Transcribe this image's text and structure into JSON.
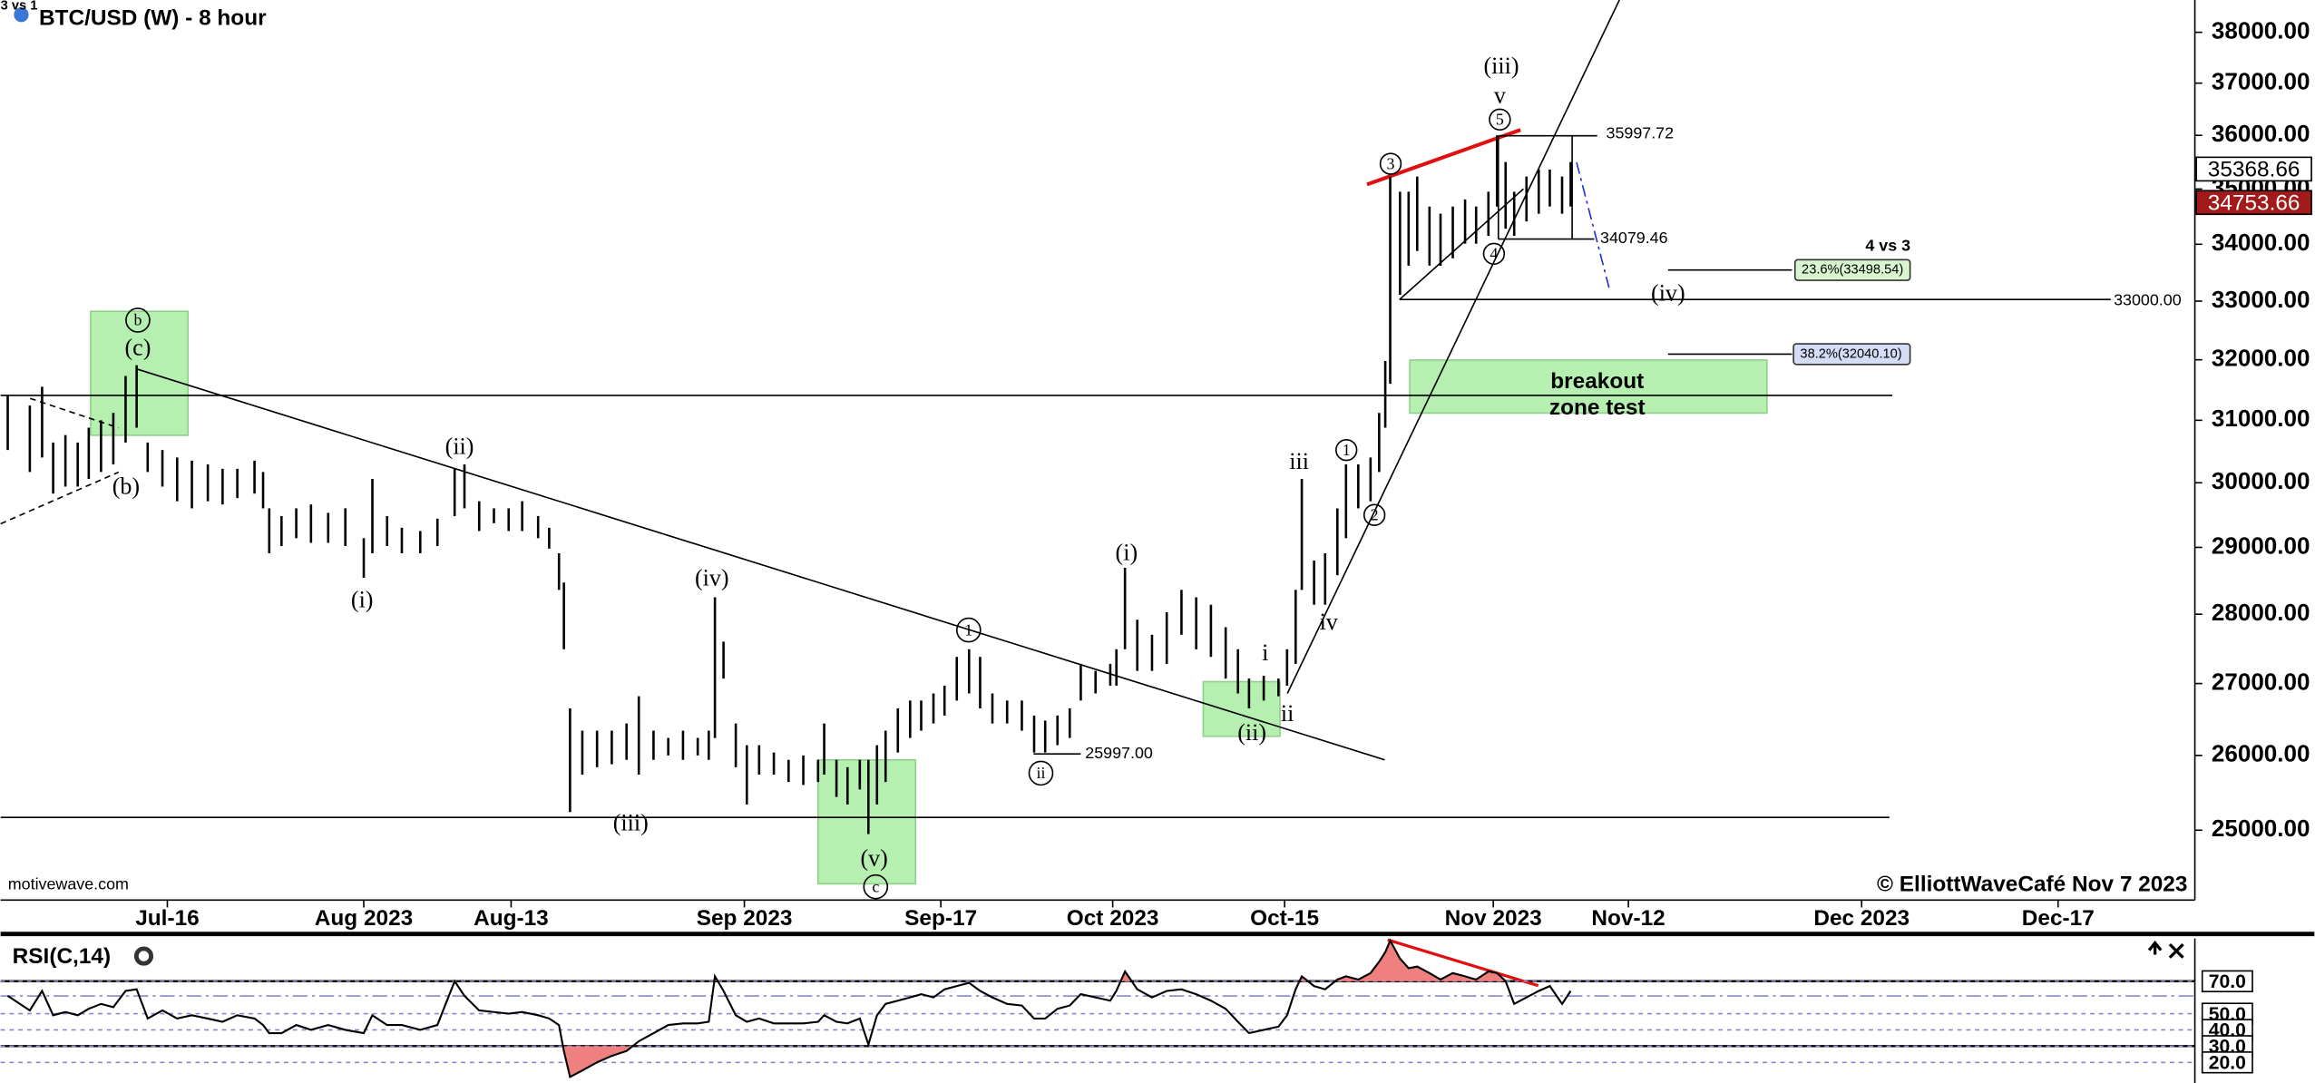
{
  "chart_data": [
    {
      "type": "range-bar",
      "title": "BTC/USD (W) - 8 hour",
      "log": true,
      "color": "#000000",
      "xlim": [
        183.42,
        362.14
      ],
      "ylim": [
        24100,
        38650
      ],
      "xticks": [
        {
          "value": 197,
          "label": "Jul-16"
        },
        {
          "value": 213,
          "label": "Aug 2023"
        },
        {
          "value": 225,
          "label": "Aug-13"
        },
        {
          "value": 244,
          "label": "Sep 2023"
        },
        {
          "value": 260,
          "label": "Sep-17"
        },
        {
          "value": 274,
          "label": "Oct 2023"
        },
        {
          "value": 288,
          "label": "Oct-15"
        },
        {
          "value": 305,
          "label": "Nov 2023"
        },
        {
          "value": 316,
          "label": "Nov-12"
        },
        {
          "value": 335,
          "label": "Dec 2023"
        },
        {
          "value": 351,
          "label": "Dec-17"
        }
      ],
      "yticks": [
        {
          "value": 25000,
          "label": "25000.00"
        },
        {
          "value": 26000,
          "label": "26000.00"
        },
        {
          "value": 27000,
          "label": "27000.00"
        },
        {
          "value": 28000,
          "label": "28000.00"
        },
        {
          "value": 29000,
          "label": "29000.00"
        },
        {
          "value": 30000,
          "label": "30000.00"
        },
        {
          "value": 31000,
          "label": "31000.00"
        },
        {
          "value": 32000,
          "label": "32000.00"
        },
        {
          "value": 33000,
          "label": "33000.00"
        },
        {
          "value": 34000,
          "label": "34000.00"
        },
        {
          "value": 35000,
          "label": "35000.00"
        },
        {
          "value": 36000,
          "label": "36000.00"
        },
        {
          "value": 37000,
          "label": "37000.00"
        },
        {
          "value": 38000,
          "label": "38000.00"
        }
      ],
      "price_markers": [
        {
          "value": 35368.66,
          "fill": "#ffffff",
          "text_color": "#000000"
        },
        {
          "value": 34753.66,
          "fill": "#a31a1a",
          "text_color": "#ffffff"
        }
      ],
      "x": [
        184.0,
        185.8,
        186.8,
        187.7,
        188.7,
        189.7,
        190.6,
        191.6,
        192.6,
        193.6,
        194.5,
        195.4,
        196.6,
        197.8,
        199.0,
        200.3,
        201.5,
        202.7,
        204.1,
        204.8,
        205.3,
        206.3,
        207.5,
        208.7,
        210.1,
        211.5,
        213.0,
        213.7,
        214.9,
        216.1,
        217.6,
        219.0,
        220.4,
        221.2,
        222.4,
        223.6,
        224.8,
        225.9,
        227.2,
        228.1,
        228.9,
        229.3,
        229.8,
        230.8,
        232.0,
        233.2,
        234.4,
        235.4,
        236.6,
        237.8,
        239.0,
        240.2,
        241.1,
        241.6,
        242.3,
        243.3,
        244.2,
        245.2,
        246.4,
        247.6,
        248.8,
        250.0,
        250.5,
        251.5,
        252.4,
        253.4,
        254.1,
        254.8,
        255.5,
        256.5,
        257.5,
        258.4,
        259.4,
        260.3,
        261.3,
        262.3,
        263.2,
        264.2,
        265.4,
        266.6,
        267.6,
        268.5,
        269.5,
        270.5,
        271.4,
        272.6,
        273.8,
        274.3,
        275.0,
        276.0,
        277.2,
        278.4,
        279.6,
        280.8,
        282.0,
        283.2,
        284.2,
        285.1,
        286.3,
        287.5,
        288.2,
        288.9,
        289.4,
        290.4,
        291.3,
        292.3,
        293.0,
        294.0,
        295.0,
        295.7,
        296.2,
        296.6,
        297.4,
        298.1,
        298.8,
        299.8,
        300.7,
        301.7,
        302.7,
        303.6,
        304.6,
        305.3,
        306.0,
        306.7,
        307.7,
        308.7,
        309.6,
        310.6,
        311.3
      ],
      "high": [
        31410,
        31240,
        31550,
        30640,
        30760,
        30640,
        30880,
        31000,
        31120,
        31730,
        31910,
        30640,
        30520,
        30400,
        30350,
        30290,
        30220,
        30220,
        30350,
        30170,
        29600,
        29480,
        29600,
        29660,
        29530,
        29600,
        29140,
        30060,
        29480,
        29300,
        29250,
        29440,
        30220,
        30290,
        29710,
        29600,
        29600,
        29710,
        29480,
        29300,
        28910,
        28470,
        26650,
        26340,
        26340,
        26340,
        26440,
        26820,
        26340,
        26240,
        26340,
        26240,
        26340,
        28250,
        27600,
        26440,
        26140,
        26140,
        26040,
        25940,
        26000,
        25940,
        26440,
        25940,
        25840,
        25940,
        25940,
        26140,
        26340,
        26650,
        26760,
        26760,
        26860,
        26970,
        27380,
        27490,
        27380,
        26860,
        26760,
        26760,
        26550,
        26480,
        26550,
        26650,
        27280,
        27180,
        27280,
        27490,
        28690,
        27920,
        27700,
        28030,
        28360,
        28250,
        28140,
        27810,
        27490,
        27070,
        27110,
        27070,
        27490,
        28360,
        30060,
        28800,
        28910,
        29600,
        30290,
        30290,
        30400,
        31120,
        31980,
        35230,
        34950,
        34950,
        35230,
        34680,
        34550,
        34680,
        34810,
        34680,
        34950,
        36000,
        35500,
        34950,
        35230,
        35360,
        35360,
        35230,
        35500
      ],
      "low": [
        30520,
        30170,
        30400,
        29830,
        29940,
        29940,
        30060,
        30170,
        30290,
        30640,
        30880,
        30170,
        29940,
        29710,
        29600,
        29710,
        29660,
        29760,
        29830,
        29600,
        28910,
        29020,
        29140,
        29070,
        29070,
        29020,
        28540,
        28910,
        29020,
        28910,
        28910,
        29020,
        29480,
        29600,
        29250,
        29370,
        29250,
        29250,
        29140,
        28980,
        28360,
        27490,
        25240,
        25740,
        25840,
        25880,
        25940,
        25740,
        25940,
        26000,
        25940,
        26000,
        25940,
        26240,
        27070,
        25840,
        25340,
        25740,
        25740,
        25640,
        25600,
        25640,
        25740,
        25440,
        25340,
        25540,
        24950,
        25340,
        25640,
        26040,
        26240,
        26340,
        26440,
        26550,
        26760,
        26860,
        26650,
        26440,
        26440,
        26340,
        26040,
        26040,
        26140,
        26240,
        26760,
        26860,
        26970,
        26970,
        27490,
        27180,
        27180,
        27280,
        27700,
        27490,
        27380,
        27070,
        26860,
        26650,
        26760,
        26820,
        26970,
        27280,
        28360,
        28140,
        28140,
        28580,
        29140,
        29600,
        29710,
        30170,
        30880,
        31600,
        33110,
        33620,
        33880,
        33620,
        33620,
        33750,
        34010,
        34010,
        34150,
        34680,
        34280,
        34150,
        34410,
        34550,
        34680,
        34550,
        34680
      ]
    },
    {
      "type": "line",
      "title": "RSI(C,14)",
      "color": "#000000",
      "overbought_color": "#f08080",
      "xlim": [
        183.42,
        362.14
      ],
      "ylim": [
        7.3,
        96.4
      ],
      "yticks": [
        {
          "value": 70,
          "label": "70.0"
        },
        {
          "value": 50,
          "label": "50.0"
        },
        {
          "value": 40,
          "label": "40.0"
        },
        {
          "value": 30,
          "label": "30.0"
        },
        {
          "value": 20,
          "label": "20.0"
        }
      ],
      "x": [
        184.0,
        185.8,
        186.8,
        187.7,
        188.7,
        189.7,
        190.6,
        191.6,
        192.6,
        193.6,
        194.5,
        195.4,
        196.6,
        197.8,
        199.0,
        200.3,
        201.5,
        202.7,
        204.1,
        204.8,
        205.3,
        206.3,
        207.5,
        208.7,
        210.1,
        211.5,
        213.0,
        213.7,
        214.9,
        216.1,
        217.6,
        219.0,
        220.4,
        221.2,
        222.4,
        223.6,
        224.8,
        225.9,
        227.2,
        228.1,
        228.9,
        229.3,
        229.8,
        230.8,
        232.0,
        233.2,
        234.4,
        235.4,
        236.6,
        237.8,
        239.0,
        240.2,
        241.1,
        241.6,
        242.3,
        243.3,
        244.2,
        245.2,
        246.4,
        247.6,
        248.8,
        250.0,
        250.5,
        251.5,
        252.4,
        253.4,
        254.1,
        254.8,
        255.5,
        256.5,
        257.5,
        258.4,
        259.4,
        260.3,
        261.3,
        262.3,
        263.2,
        264.2,
        265.4,
        266.6,
        267.6,
        268.5,
        269.5,
        270.5,
        271.4,
        272.6,
        273.8,
        274.3,
        275.0,
        276.0,
        277.2,
        278.4,
        279.6,
        280.8,
        282.0,
        283.2,
        284.2,
        285.1,
        286.3,
        287.5,
        288.2,
        288.9,
        289.4,
        290.4,
        291.3,
        292.3,
        293.0,
        294.0,
        295.0,
        295.7,
        296.2,
        296.6,
        297.4,
        298.1,
        298.8,
        299.8,
        300.7,
        301.7,
        302.7,
        303.6,
        304.6,
        305.3,
        306.0,
        306.7,
        307.7,
        308.7,
        309.6,
        310.6,
        311.3
      ],
      "values": [
        61,
        52,
        64,
        49,
        51,
        49,
        53,
        56,
        54,
        64,
        65,
        47,
        52,
        47,
        49,
        47,
        45,
        49,
        47,
        43,
        38,
        38,
        43,
        40,
        43,
        40,
        38,
        49,
        43,
        43,
        40,
        43,
        70,
        61,
        52,
        51,
        50,
        51,
        49,
        47,
        43,
        27,
        11,
        15,
        20,
        24,
        27,
        33,
        38,
        43,
        44,
        44,
        45,
        73,
        64,
        49,
        45,
        47,
        44,
        44,
        44,
        45,
        49,
        45,
        44,
        47,
        31,
        49,
        56,
        58,
        60,
        62,
        60,
        65,
        67,
        69,
        64,
        60,
        56,
        55,
        47,
        47,
        53,
        55,
        62,
        60,
        58,
        64,
        76,
        65,
        60,
        64,
        65,
        62,
        58,
        53,
        45,
        38,
        40,
        42,
        49,
        65,
        73,
        67,
        65,
        71,
        73,
        71,
        75,
        82,
        88,
        95,
        84,
        78,
        79,
        75,
        71,
        75,
        73,
        71,
        76,
        75,
        70,
        56,
        60,
        64,
        67,
        56,
        64
      ]
    }
  ],
  "annotations": [
    "(iii)",
    "v",
    "5",
    "3",
    "35997.72",
    "34079.46",
    "4",
    "4 vs 3",
    "23.6%(33498.54)",
    "(iv)",
    "33000.00",
    "38.2%(32040.10)",
    "breakout",
    "zone test",
    "1",
    "iii",
    "2",
    "iv",
    "i",
    "ii",
    "(ii)",
    "(i)",
    "1",
    "ii",
    "25997.00",
    "(iv)",
    "(ii)",
    "(i)",
    "(iii)",
    "(v)",
    "c",
    "b",
    "(c)",
    "(b)",
    "3 vs 1",
    "motivewave.com",
    "© ElliottWaveCafé Nov 7 2023"
  ]
}
